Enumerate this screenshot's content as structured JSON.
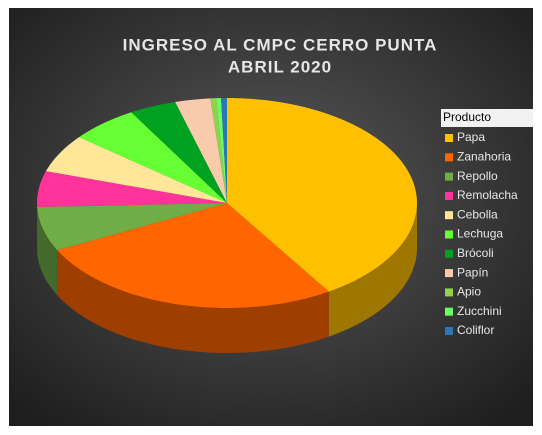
{
  "chart_data": {
    "type": "pie3d",
    "title": "INGRESO AL CMPC CERRO PUNTA",
    "subtitle": "ABRIL 2020",
    "legend_title": "Producto",
    "legend": "right",
    "categories": [
      "Papa",
      "Zanahoria",
      "Repollo",
      "Remolacha",
      "Cebolla",
      "Lechuga",
      "Brócoli",
      "Papín",
      "Apio",
      "Zucchini",
      "Coliflor"
    ],
    "values": [
      41,
      26.6,
      6.8,
      5.5,
      5.9,
      5.8,
      4,
      3,
      0.5,
      0.4,
      0.5
    ],
    "colors": [
      "#ffc000",
      "#ff6600",
      "#70ad47",
      "#ff3399",
      "#ffe699",
      "#66ff33",
      "#00a020",
      "#f8cbad",
      "#92d050",
      "#66ff66",
      "#2e75b6"
    ]
  }
}
